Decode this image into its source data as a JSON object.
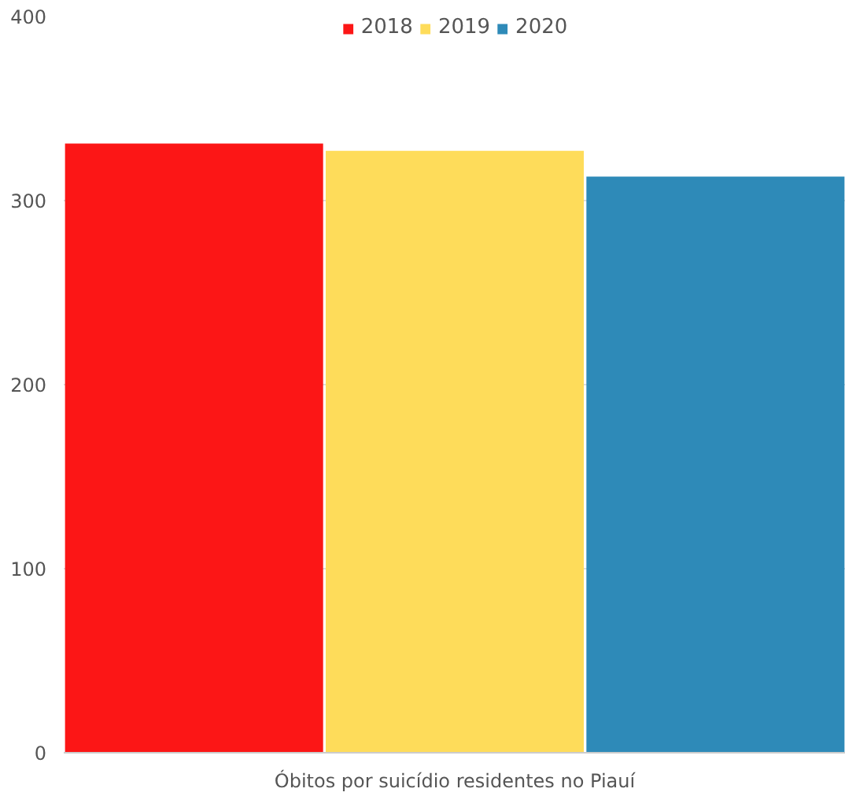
{
  "chart_data": {
    "type": "bar",
    "categories": [
      "Óbitos por suicídio residentes no Piauí"
    ],
    "series": [
      {
        "name": "2018",
        "color": "#fc1616",
        "values": [
          331
        ]
      },
      {
        "name": "2019",
        "color": "#fedc5a",
        "values": [
          327
        ]
      },
      {
        "name": "2020",
        "color": "#2e8ab8",
        "values": [
          313
        ]
      }
    ],
    "ylim": [
      0,
      400
    ],
    "yticks": [
      0,
      100,
      200,
      300,
      400
    ],
    "grid": "y",
    "legend": "top"
  }
}
